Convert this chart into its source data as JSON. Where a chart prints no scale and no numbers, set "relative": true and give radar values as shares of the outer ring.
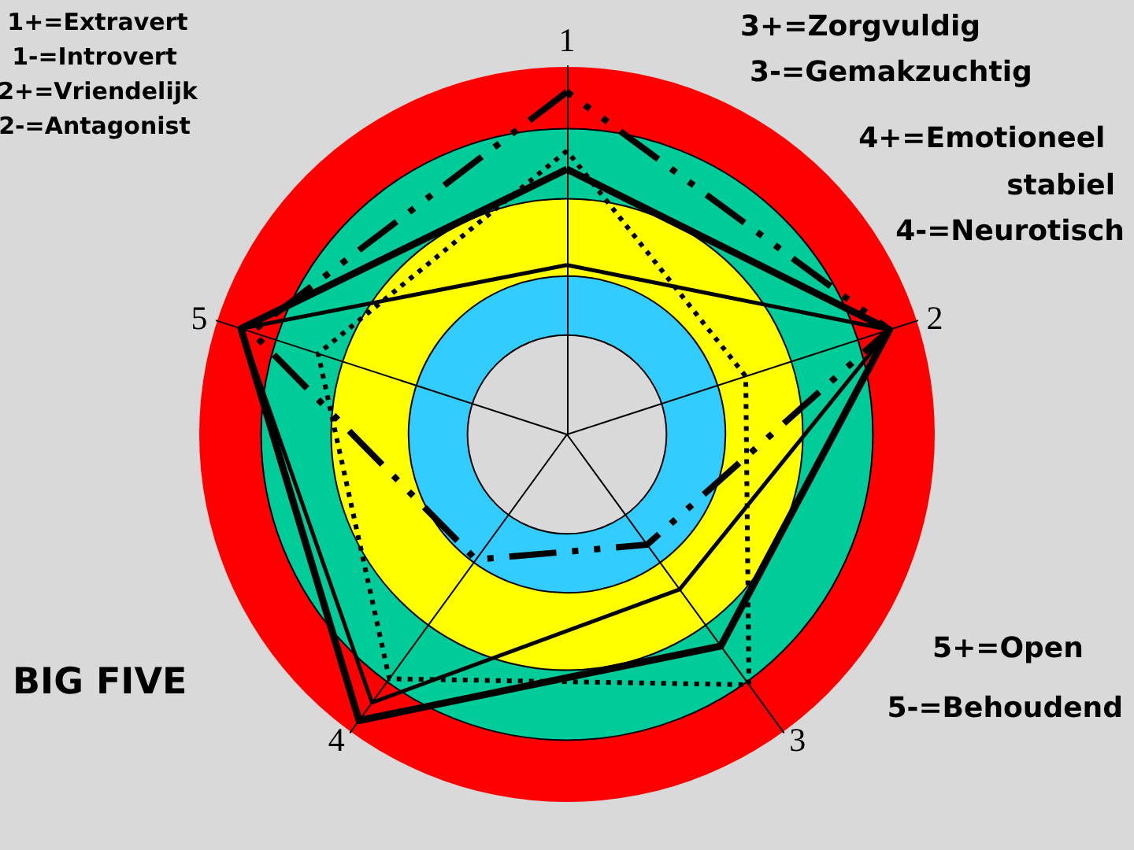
{
  "chart_data": {
    "type": "radar",
    "title": "BIG FIVE",
    "categories": [
      "1",
      "2",
      "3",
      "4",
      "5"
    ],
    "relative": true,
    "series": [
      {
        "color": "#000000",
        "line_style": "solid",
        "values": [
          0.72,
          0.92,
          0.71,
          0.96,
          0.93
        ]
      },
      {
        "color": "#000000",
        "line_style": "solid",
        "values": [
          0.46,
          0.92,
          0.52,
          0.9,
          0.93
        ]
      },
      {
        "color": "#000000",
        "line_style": "dotted",
        "values": [
          0.77,
          0.51,
          0.84,
          0.82,
          0.71
        ]
      },
      {
        "color": "#000000",
        "line_style": "dashed",
        "values": [
          0.93,
          0.92,
          0.37,
          0.42,
          0.9
        ]
      }
    ],
    "marker": "none",
    "annotations": [
      "1+=Extravert",
      "1-=Introvert",
      "2+=Vriendelijk",
      "2-=Antagonist",
      "3+=Zorgvuldig",
      "3-=Gemakzuchtig",
      "4+=Emotioneel stabiel",
      "4-=Neurotisch",
      "5+=Open",
      "5-=Behoudend"
    ]
  }
}
